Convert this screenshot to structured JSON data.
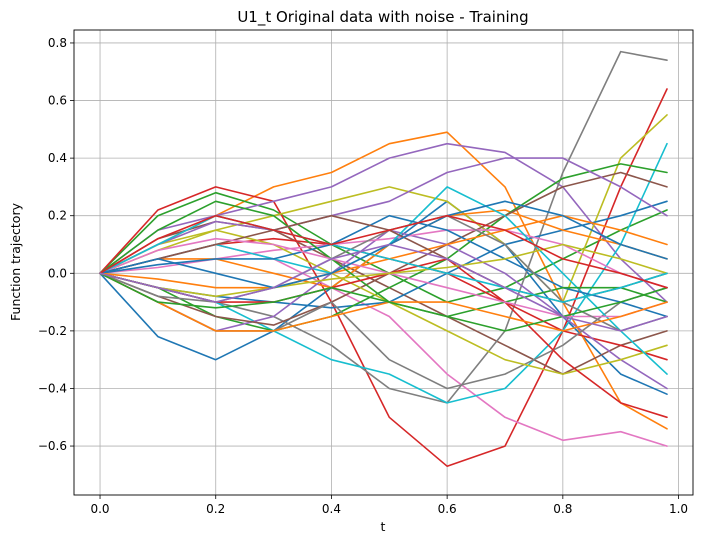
{
  "chart_data": {
    "type": "line",
    "title": "U1_t Original data with noise - Training",
    "xlabel": "t",
    "ylabel": "Function trajectory",
    "xlim": [
      -0.045,
      1.025
    ],
    "ylim": [
      -0.77,
      0.845
    ],
    "x_ticks": [
      0.0,
      0.2,
      0.4,
      0.6,
      0.8,
      1.0
    ],
    "x_tick_labels": [
      "0.0",
      "0.2",
      "0.4",
      "0.6",
      "0.8",
      "1.0"
    ],
    "y_ticks": [
      -0.6,
      -0.4,
      -0.2,
      0.0,
      0.2,
      0.4,
      0.6,
      0.8
    ],
    "y_tick_labels": [
      "−0.6",
      "−0.4",
      "−0.2",
      "0.0",
      "0.2",
      "0.4",
      "0.6",
      "0.8"
    ],
    "grid": true,
    "legend": "none",
    "x": [
      0.0,
      0.1,
      0.2,
      0.3,
      0.4,
      0.5,
      0.6,
      0.7,
      0.8,
      0.9,
      0.98
    ],
    "series": [
      {
        "color": "#1f77b4",
        "values": [
          0,
          -0.22,
          -0.3,
          -0.2,
          -0.05,
          0.1,
          0.25,
          0.1,
          -0.15,
          -0.35,
          -0.42
        ]
      },
      {
        "color": "#ff7f0e",
        "values": [
          0,
          0.1,
          0.2,
          0.3,
          0.35,
          0.45,
          0.49,
          0.3,
          -0.1,
          -0.45,
          -0.54
        ]
      },
      {
        "color": "#2ca02c",
        "values": [
          0,
          0.2,
          0.28,
          0.22,
          0.1,
          0.0,
          -0.1,
          -0.05,
          0.05,
          0.15,
          0.22
        ]
      },
      {
        "color": "#d62728",
        "values": [
          0,
          0.22,
          0.3,
          0.25,
          -0.1,
          -0.5,
          -0.67,
          -0.6,
          -0.2,
          0.3,
          0.64
        ]
      },
      {
        "color": "#9467bd",
        "values": [
          0,
          0.15,
          0.2,
          0.25,
          0.3,
          0.4,
          0.45,
          0.42,
          0.3,
          0.05,
          -0.1
        ]
      },
      {
        "color": "#8c564b",
        "values": [
          0,
          0.12,
          0.18,
          0.15,
          0.05,
          -0.05,
          -0.15,
          -0.25,
          -0.35,
          -0.25,
          -0.2
        ]
      },
      {
        "color": "#e377c2",
        "values": [
          0,
          0.05,
          0.1,
          0.05,
          -0.05,
          -0.15,
          -0.35,
          -0.5,
          -0.58,
          -0.55,
          -0.6
        ]
      },
      {
        "color": "#7f7f7f",
        "values": [
          0,
          -0.05,
          -0.1,
          -0.15,
          -0.25,
          -0.4,
          -0.45,
          -0.2,
          0.35,
          0.77,
          0.74
        ]
      },
      {
        "color": "#bcbd22",
        "values": [
          0,
          0.08,
          0.15,
          0.2,
          0.25,
          0.3,
          0.25,
          0.1,
          -0.1,
          0.4,
          0.55
        ]
      },
      {
        "color": "#17becf",
        "values": [
          0,
          -0.05,
          -0.1,
          -0.2,
          -0.3,
          -0.35,
          -0.45,
          -0.4,
          -0.2,
          0.1,
          0.45
        ]
      },
      {
        "color": "#1f77b4",
        "values": [
          0,
          -0.05,
          -0.08,
          -0.1,
          -0.12,
          -0.1,
          0.0,
          0.1,
          0.15,
          0.2,
          0.25
        ]
      },
      {
        "color": "#ff7f0e",
        "values": [
          0,
          0.05,
          0.05,
          0.0,
          -0.05,
          0.1,
          0.2,
          0.22,
          0.15,
          0.1,
          0.05
        ]
      },
      {
        "color": "#2ca02c",
        "values": [
          0,
          -0.05,
          -0.15,
          -0.2,
          -0.15,
          -0.05,
          0.05,
          0.2,
          0.33,
          0.38,
          0.35
        ]
      },
      {
        "color": "#d62728",
        "values": [
          0,
          0.05,
          0.1,
          0.12,
          0.1,
          0.05,
          0.0,
          -0.1,
          -0.2,
          -0.25,
          -0.3
        ]
      },
      {
        "color": "#9467bd",
        "values": [
          0,
          -0.1,
          -0.2,
          -0.15,
          0.0,
          0.15,
          0.1,
          0.0,
          -0.15,
          -0.3,
          -0.4
        ]
      },
      {
        "color": "#8c564b",
        "values": [
          0,
          -0.08,
          -0.15,
          -0.18,
          -0.1,
          0.0,
          0.1,
          0.2,
          0.3,
          0.35,
          0.3
        ]
      },
      {
        "color": "#e377c2",
        "values": [
          0,
          0.02,
          0.05,
          0.08,
          0.1,
          0.12,
          0.15,
          0.15,
          0.1,
          0.0,
          -0.05
        ]
      },
      {
        "color": "#7f7f7f",
        "values": [
          0,
          -0.1,
          -0.2,
          -0.2,
          -0.1,
          -0.3,
          -0.4,
          -0.35,
          -0.25,
          -0.1,
          -0.05
        ]
      },
      {
        "color": "#bcbd22",
        "values": [
          0,
          0.1,
          0.15,
          0.1,
          0.0,
          -0.1,
          -0.2,
          -0.3,
          -0.35,
          -0.3,
          -0.25
        ]
      },
      {
        "color": "#17becf",
        "values": [
          0,
          0.05,
          0.1,
          0.05,
          0.0,
          0.1,
          0.3,
          0.2,
          0.0,
          -0.2,
          -0.35
        ]
      },
      {
        "color": "#1f77b4",
        "values": [
          0,
          0.03,
          0.05,
          0.05,
          0.1,
          0.2,
          0.15,
          0.05,
          -0.05,
          -0.1,
          -0.15
        ]
      },
      {
        "color": "#ff7f0e",
        "values": [
          0,
          -0.02,
          -0.05,
          -0.05,
          0.0,
          0.05,
          0.1,
          0.15,
          0.2,
          0.15,
          0.1
        ]
      },
      {
        "color": "#2ca02c",
        "values": [
          0,
          0.15,
          0.25,
          0.2,
          0.05,
          -0.1,
          -0.15,
          -0.1,
          -0.05,
          -0.05,
          -0.1
        ]
      },
      {
        "color": "#d62728",
        "values": [
          0,
          -0.05,
          -0.1,
          -0.1,
          -0.05,
          0.0,
          0.05,
          -0.1,
          -0.3,
          -0.45,
          -0.5
        ]
      },
      {
        "color": "#9467bd",
        "values": [
          0,
          0.1,
          0.18,
          0.15,
          0.2,
          0.25,
          0.35,
          0.4,
          0.4,
          0.3,
          0.2
        ]
      },
      {
        "color": "#8c564b",
        "values": [
          0,
          0.05,
          0.1,
          0.15,
          0.2,
          0.15,
          0.05,
          -0.05,
          -0.1,
          -0.05,
          0.0
        ]
      },
      {
        "color": "#e377c2",
        "values": [
          0,
          0.08,
          0.12,
          0.1,
          0.05,
          0.0,
          -0.05,
          -0.1,
          -0.15,
          -0.15,
          -0.1
        ]
      },
      {
        "color": "#7f7f7f",
        "values": [
          0,
          -0.08,
          -0.1,
          -0.05,
          0.05,
          0.15,
          0.2,
          0.1,
          -0.1,
          -0.2,
          -0.15
        ]
      },
      {
        "color": "#bcbd22",
        "values": [
          0,
          -0.05,
          -0.08,
          -0.05,
          -0.02,
          0.0,
          0.02,
          0.05,
          0.1,
          0.05,
          0.0
        ]
      },
      {
        "color": "#17becf",
        "values": [
          0,
          0.1,
          0.2,
          0.15,
          0.1,
          0.05,
          0.0,
          -0.05,
          -0.1,
          -0.05,
          0.0
        ]
      },
      {
        "color": "#1f77b4",
        "values": [
          0,
          0.05,
          0.0,
          -0.05,
          0.0,
          0.1,
          0.2,
          0.25,
          0.2,
          0.1,
          0.05
        ]
      },
      {
        "color": "#ff7f0e",
        "values": [
          0,
          -0.1,
          -0.2,
          -0.2,
          -0.15,
          -0.1,
          -0.1,
          -0.15,
          -0.2,
          -0.15,
          -0.1
        ]
      },
      {
        "color": "#2ca02c",
        "values": [
          0,
          -0.1,
          -0.12,
          -0.1,
          -0.05,
          -0.1,
          -0.15,
          -0.2,
          -0.15,
          -0.1,
          -0.05
        ]
      },
      {
        "color": "#d62728",
        "values": [
          0,
          0.12,
          0.2,
          0.15,
          0.1,
          0.15,
          0.2,
          0.15,
          0.05,
          0.0,
          -0.05
        ]
      },
      {
        "color": "#9467bd",
        "values": [
          0,
          -0.05,
          -0.1,
          -0.05,
          0.05,
          0.1,
          0.05,
          -0.05,
          -0.15,
          -0.2,
          -0.15
        ]
      }
    ]
  }
}
